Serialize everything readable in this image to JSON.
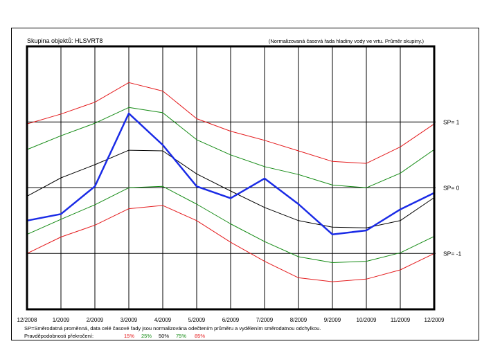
{
  "chart_data": {
    "type": "line",
    "title": "Skupina objektů: HLSVRT8",
    "subtitle": "(Normalizovaná časová řada hladiny vody ve vrtu. Průměr skupiny.)",
    "categories": [
      "12/2008",
      "1/2009",
      "2/2009",
      "3/2009",
      "4/2009",
      "5/2009",
      "6/2009",
      "7/2009",
      "8/2009",
      "9/2009",
      "10/2009",
      "11/2009",
      "12/2009"
    ],
    "ylim": [
      -1.85,
      2.15
    ],
    "sp_lines": [
      {
        "value": 1,
        "label": "SP= 1"
      },
      {
        "value": 0,
        "label": "SP= 0"
      },
      {
        "value": -1,
        "label": "SP= -1"
      }
    ],
    "series": [
      {
        "name": "15%",
        "color": "#e41a1c",
        "width": 1,
        "values": [
          -1.0,
          -0.75,
          -0.57,
          -0.32,
          -0.27,
          -0.5,
          -0.83,
          -1.12,
          -1.37,
          -1.43,
          -1.39,
          -1.25,
          -1.0
        ]
      },
      {
        "name": "25%",
        "color": "#138a13",
        "width": 1,
        "values": [
          -0.71,
          -0.48,
          -0.26,
          0.0,
          0.02,
          -0.25,
          -0.55,
          -0.82,
          -1.05,
          -1.14,
          -1.12,
          -0.99,
          -0.74
        ]
      },
      {
        "name": "50%",
        "color": "#000000",
        "width": 1,
        "values": [
          -0.13,
          0.15,
          0.35,
          0.57,
          0.56,
          0.21,
          -0.05,
          -0.3,
          -0.5,
          -0.6,
          -0.61,
          -0.5,
          -0.15
        ]
      },
      {
        "name": "75%",
        "color": "#138a13",
        "width": 1,
        "values": [
          0.58,
          0.79,
          0.98,
          1.22,
          1.14,
          0.73,
          0.5,
          0.32,
          0.2,
          0.04,
          0.0,
          0.22,
          0.58
        ]
      },
      {
        "name": "85%",
        "color": "#e41a1c",
        "width": 1,
        "values": [
          0.97,
          1.12,
          1.3,
          1.6,
          1.47,
          1.05,
          0.86,
          0.72,
          0.56,
          0.4,
          0.37,
          0.62,
          0.97
        ]
      },
      {
        "name": "Průměr skupiny",
        "color": "#1a2be6",
        "width": 2.5,
        "values": [
          -0.5,
          -0.4,
          0.02,
          1.13,
          0.65,
          0.02,
          -0.16,
          0.14,
          -0.25,
          -0.71,
          -0.65,
          -0.33,
          -0.08
        ]
      }
    ],
    "note": "SP=Směrodatná proměnná, data celé časové řady jsou normalizována odečtením průměru a vydělením směrodatnou odchylkou.",
    "legend_label": "Pravděpodobnosti překročení:"
  }
}
